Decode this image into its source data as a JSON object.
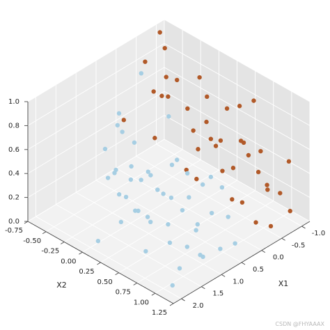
{
  "chart_data": {
    "type": "scatter",
    "projection": "3d",
    "grid": true,
    "xlabel": "X1",
    "ylabel": "X2",
    "zlabel": "",
    "xlim": [
      -1.2,
      2.2
    ],
    "ylim": [
      -0.75,
      1.25
    ],
    "zlim": [
      0.0,
      1.0
    ],
    "xticks": [
      "-1.0",
      "-0.5",
      "0.0",
      "0.5",
      "1.0",
      "1.5",
      "2.0"
    ],
    "yticks": [
      "-0.75",
      "-0.50",
      "-0.25",
      "0.00",
      "0.25",
      "0.50",
      "0.75",
      "1.00",
      "1.25"
    ],
    "zticks": [
      "0.0",
      "0.2",
      "0.4",
      "0.6",
      "0.8",
      "1.0"
    ],
    "series": [
      {
        "color": "#a6cee3",
        "points": [
          [
            0.55,
            -0.45,
            0.2
          ],
          [
            0.45,
            -0.3,
            0.15
          ],
          [
            0.75,
            -0.2,
            0.1
          ],
          [
            0.3,
            -0.5,
            0.45
          ],
          [
            0.6,
            -0.4,
            0.6
          ],
          [
            0.2,
            -0.6,
            0.55
          ],
          [
            0.0,
            -0.5,
            0.3
          ],
          [
            1.0,
            -0.35,
            0.5
          ],
          [
            0.1,
            -0.35,
            0.95
          ],
          [
            0.8,
            -0.1,
            0.4
          ],
          [
            1.2,
            -0.2,
            0.35
          ],
          [
            0.2,
            -0.2,
            0.2
          ],
          [
            0.5,
            0.0,
            0.3
          ],
          [
            1.4,
            0.0,
            0.5
          ],
          [
            0.9,
            0.05,
            0.1
          ],
          [
            0.15,
            0.1,
            0.35
          ],
          [
            0.6,
            0.15,
            0.25
          ],
          [
            1.1,
            0.2,
            0.45
          ],
          [
            0.35,
            0.2,
            0.15
          ],
          [
            0.0,
            0.25,
            0.1
          ],
          [
            1.6,
            0.2,
            0.2
          ],
          [
            0.7,
            0.35,
            0.05
          ],
          [
            1.3,
            0.4,
            0.25
          ],
          [
            1.0,
            0.45,
            0.4
          ],
          [
            0.4,
            0.45,
            0.45
          ],
          [
            0.75,
            0.5,
            0.65
          ],
          [
            0.2,
            0.55,
            0.35
          ],
          [
            1.5,
            0.55,
            0.3
          ],
          [
            0.6,
            0.7,
            0.15
          ],
          [
            1.2,
            0.65,
            0.1
          ],
          [
            0.95,
            0.75,
            0.05
          ],
          [
            1.8,
            0.65,
            0.15
          ],
          [
            0.45,
            0.8,
            0.55
          ],
          [
            1.0,
            0.9,
            0.25
          ],
          [
            1.5,
            0.95,
            0.05
          ],
          [
            0.7,
            0.95,
            0.35
          ],
          [
            1.1,
            1.05,
            0.1
          ],
          [
            0.2,
            0.9,
            0.2
          ],
          [
            0.85,
            1.15,
            0.15
          ],
          [
            1.9,
            0.05,
            0.05
          ],
          [
            1.7,
            0.45,
            0.4
          ],
          [
            0.3,
            1.05,
            0.05
          ],
          [
            -0.1,
            0.65,
            0.3
          ],
          [
            1.35,
            1.15,
            0.2
          ],
          [
            0.05,
            0.0,
            0.7
          ],
          [
            1.95,
            1.1,
            0.05
          ],
          [
            0.65,
            -0.35,
            0.05
          ],
          [
            1.25,
            0.85,
            0.45
          ]
        ]
      },
      {
        "color": "#b15928",
        "points": [
          [
            -1.0,
            -0.7,
            0.95
          ],
          [
            -0.85,
            -0.55,
            0.9
          ],
          [
            -0.7,
            -0.3,
            0.75
          ],
          [
            -0.45,
            -0.6,
            0.85
          ],
          [
            -0.9,
            -0.1,
            0.8
          ],
          [
            -0.6,
            -0.1,
            0.6
          ],
          [
            -0.3,
            -0.4,
            0.7
          ],
          [
            -0.8,
            0.05,
            0.5
          ],
          [
            -0.1,
            -0.7,
            0.4
          ],
          [
            -0.5,
            0.1,
            0.35
          ],
          [
            -0.95,
            0.25,
            0.65
          ],
          [
            -0.7,
            0.3,
            0.45
          ],
          [
            -0.3,
            0.05,
            0.2
          ],
          [
            -0.2,
            0.2,
            0.6
          ],
          [
            -0.9,
            0.45,
            0.75
          ],
          [
            -0.65,
            0.5,
            0.3
          ],
          [
            -0.4,
            0.4,
            0.5
          ],
          [
            -0.1,
            0.3,
            0.25
          ],
          [
            -0.85,
            0.6,
            0.4
          ],
          [
            -0.55,
            0.7,
            0.6
          ],
          [
            -0.95,
            0.8,
            0.2
          ],
          [
            -0.7,
            0.85,
            0.55
          ],
          [
            -0.35,
            0.65,
            0.15
          ],
          [
            -0.2,
            0.6,
            0.4
          ],
          [
            -0.6,
            1.0,
            0.3
          ],
          [
            -0.95,
            1.1,
            0.5
          ],
          [
            -0.4,
            0.95,
            0.05
          ],
          [
            -0.8,
            1.2,
            0.15
          ],
          [
            -0.15,
            0.9,
            0.25
          ],
          [
            -0.55,
            1.2,
            0.35
          ],
          [
            -0.25,
            -0.2,
            0.9
          ],
          [
            -0.75,
            -0.45,
            0.55
          ],
          [
            -1.0,
            0.0,
            0.3
          ],
          [
            -0.45,
            0.25,
            0.85
          ],
          [
            -0.05,
            -0.15,
            0.8
          ],
          [
            -0.8,
            0.7,
            0.9
          ],
          [
            -0.3,
            0.8,
            0.7
          ],
          [
            -0.6,
            -0.55,
            0.2
          ],
          [
            -0.5,
            1.1,
            0.05
          ],
          [
            -0.1,
            1.15,
            0.6
          ]
        ]
      }
    ]
  },
  "watermark": "CSDN @FHYAAAX"
}
